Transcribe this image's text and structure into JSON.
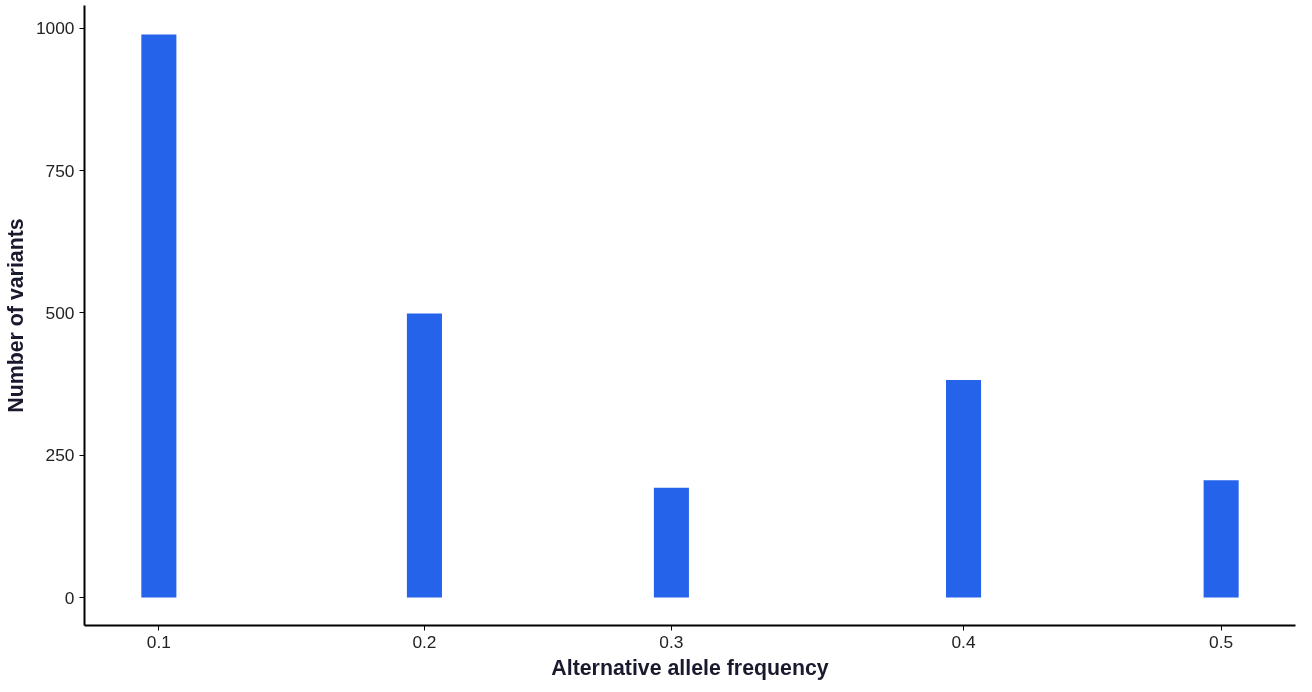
{
  "chart_data": {
    "type": "bar",
    "xlabel": "Alternative allele frequency",
    "ylabel": "Number of variants",
    "x": [
      0.1,
      0.2,
      0.293,
      0.403,
      0.5
    ],
    "values": [
      989,
      499,
      193,
      382,
      206
    ],
    "color": "#2563eb",
    "xlim": [
      0.072,
      0.528
    ],
    "ylim": [
      -49,
      1040
    ],
    "xticks": [
      0.1,
      0.2,
      {
        "value": 0.293,
        "label": "0.3"
      },
      {
        "value": 0.403,
        "label": "0.4"
      },
      0.5
    ],
    "yticks": [
      0,
      250,
      500,
      750,
      1000
    ],
    "grid": false
  }
}
